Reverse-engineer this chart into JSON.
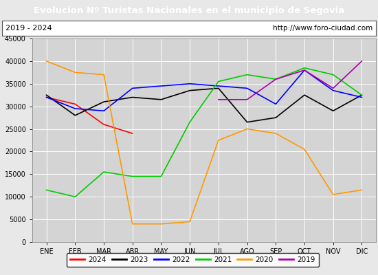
{
  "title": "Evolucion Nº Turistas Nacionales en el municipio de Segovia",
  "subtitle_left": "2019 - 2024",
  "subtitle_right": "http://www.foro-ciudad.com",
  "months": [
    "ENE",
    "FEB",
    "MAR",
    "ABR",
    "MAY",
    "JUN",
    "JUL",
    "AGO",
    "SEP",
    "OCT",
    "NOV",
    "DIC"
  ],
  "series": {
    "2024": {
      "color": "#ff0000",
      "data": [
        32000,
        30500,
        26000,
        24000,
        null,
        null,
        null,
        null,
        null,
        null,
        null,
        null
      ]
    },
    "2023": {
      "color": "#000000",
      "data": [
        32500,
        28000,
        31000,
        32000,
        31500,
        33500,
        34000,
        26500,
        27500,
        32500,
        29000,
        32500
      ]
    },
    "2022": {
      "color": "#0000ff",
      "data": [
        32000,
        29500,
        29000,
        34000,
        34500,
        35000,
        34500,
        34000,
        30500,
        38000,
        33500,
        32000
      ]
    },
    "2021": {
      "color": "#00cc00",
      "data": [
        11500,
        10000,
        15500,
        14500,
        14500,
        26500,
        35500,
        37000,
        36000,
        38500,
        37000,
        32500
      ]
    },
    "2020": {
      "color": "#ff9900",
      "data": [
        40000,
        37500,
        37000,
        4000,
        4000,
        4500,
        22500,
        25000,
        24000,
        20500,
        10500,
        11500
      ]
    },
    "2019": {
      "color": "#aa00aa",
      "data": [
        null,
        null,
        null,
        null,
        null,
        null,
        31500,
        31500,
        36000,
        38000,
        34000,
        40000
      ]
    }
  },
  "ylim": [
    0,
    45000
  ],
  "yticks": [
    0,
    5000,
    10000,
    15000,
    20000,
    25000,
    30000,
    35000,
    40000,
    45000
  ],
  "background_color": "#e8e8e8",
  "plot_bg_color": "#d4d4d4",
  "title_bg_color": "#4a90d9",
  "title_color": "#ffffff",
  "grid_color": "#ffffff",
  "subtitle_box_color": "#ffffff",
  "legend_order": [
    "2024",
    "2023",
    "2022",
    "2021",
    "2020",
    "2019"
  ]
}
